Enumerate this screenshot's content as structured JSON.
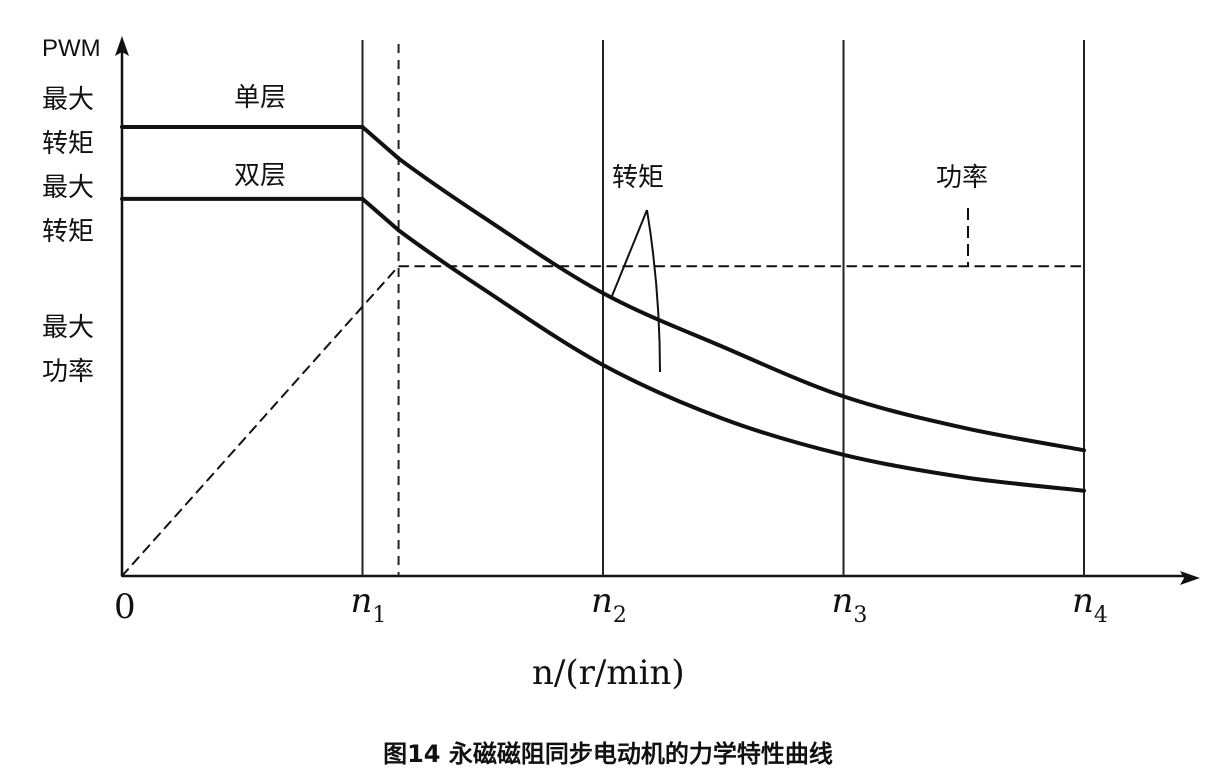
{
  "chart_data": {
    "type": "line",
    "caption": "图14 永磁磁阻同步电动机的力学特性曲线",
    "xlabel": "n/(r/min)",
    "origin_label": "0",
    "x_ticks": [
      {
        "main": "n",
        "sub": "1"
      },
      {
        "main": "n",
        "sub": "2"
      },
      {
        "main": "n",
        "sub": "3"
      },
      {
        "main": "n",
        "sub": "4"
      }
    ],
    "y_labels": [
      "PWM",
      "最大",
      "转矩",
      "最大",
      "转矩",
      "最大",
      "功率"
    ],
    "series": [
      {
        "name": "单层",
        "style": "solid",
        "color": "#111111",
        "points": [
          [
            0,
            1.0
          ],
          [
            1.0,
            1.0
          ],
          [
            1.15,
            0.93
          ],
          [
            1.5,
            0.8
          ],
          [
            2.0,
            0.63
          ],
          [
            2.5,
            0.51
          ],
          [
            3.0,
            0.4
          ],
          [
            3.5,
            0.33
          ],
          [
            4.0,
            0.28
          ]
        ]
      },
      {
        "name": "双层",
        "style": "solid",
        "color": "#111111",
        "points": [
          [
            0,
            0.84
          ],
          [
            1.0,
            0.84
          ],
          [
            1.15,
            0.77
          ],
          [
            1.5,
            0.64
          ],
          [
            2.0,
            0.47
          ],
          [
            2.5,
            0.35
          ],
          [
            3.0,
            0.27
          ],
          [
            3.5,
            0.22
          ],
          [
            4.0,
            0.19
          ]
        ]
      },
      {
        "name": "功率",
        "style": "dashed",
        "color": "#111111",
        "points": [
          [
            0,
            0.0
          ],
          [
            1.15,
            0.69
          ],
          [
            4.0,
            0.69
          ]
        ]
      }
    ],
    "annotations": [
      "单层",
      "双层",
      "转矩",
      "功率"
    ],
    "xlim": [
      0,
      4.3
    ],
    "ylim": [
      0,
      1.2
    ],
    "grid": "vertical lines at n1, n2, n3, n4"
  }
}
